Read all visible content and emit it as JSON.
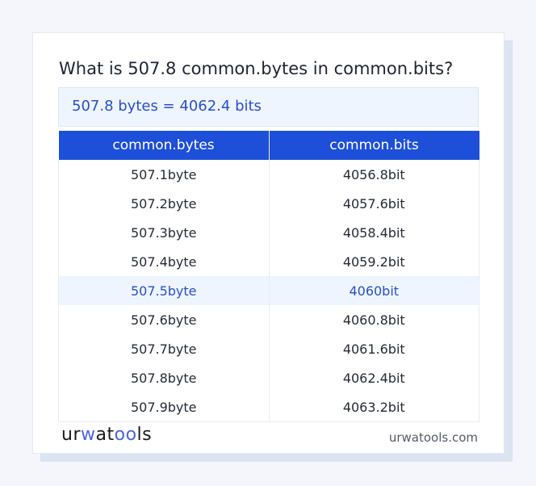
{
  "title": "What is 507.8 common.bytes in common.bits?",
  "result": "507.8 bytes = 4062.4 bits",
  "table": {
    "headers": [
      "common.bytes",
      "common.bits"
    ],
    "rows": [
      [
        "507.1byte",
        "4056.8bit"
      ],
      [
        "507.2byte",
        "4057.6bit"
      ],
      [
        "507.3byte",
        "4058.4bit"
      ],
      [
        "507.4byte",
        "4059.2bit"
      ],
      [
        "507.5byte",
        "4060bit"
      ],
      [
        "507.6byte",
        "4060.8bit"
      ],
      [
        "507.7byte",
        "4061.6bit"
      ],
      [
        "507.8byte",
        "4062.4bit"
      ],
      [
        "507.9byte",
        "4063.2bit"
      ]
    ],
    "highlighted_row": 4
  },
  "footer": {
    "logo": "urwatools",
    "site": "urwatools.com"
  },
  "colors": {
    "accent": "#1d4fd8",
    "highlight_bg": "#eef5fe",
    "result_text": "#2a4fc8"
  }
}
